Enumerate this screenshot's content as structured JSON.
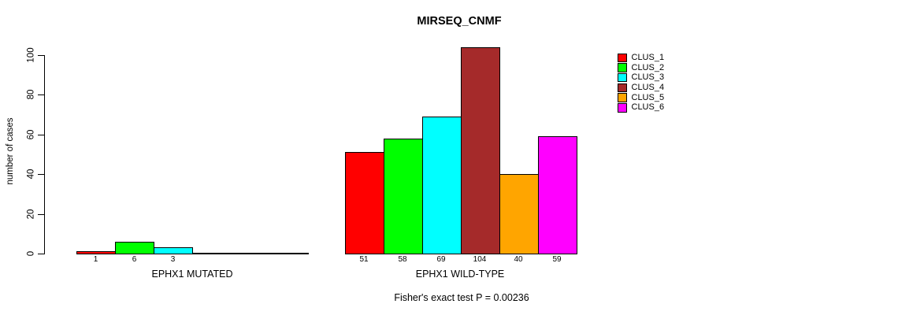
{
  "chart_data": {
    "type": "bar",
    "title": "MIRSEQ_CNMF",
    "ylabel": "number of cases",
    "subtitle": "Fisher's exact test P = 0.00236",
    "ylim": [
      0,
      100
    ],
    "yticks": [
      0,
      20,
      40,
      60,
      80,
      100
    ],
    "grid": false,
    "legend_position": "right",
    "series_names": [
      "CLUS_1",
      "CLUS_2",
      "CLUS_3",
      "CLUS_4",
      "CLUS_5",
      "CLUS_6"
    ],
    "series_colors": [
      "#FF0000",
      "#00FF00",
      "#00FFFF",
      "#A52A2A",
      "#FFA500",
      "#FF00FF"
    ],
    "groups": [
      {
        "label": "EPHX1 MUTATED",
        "values": [
          1,
          6,
          3,
          0,
          0,
          0
        ],
        "bar_labels": [
          "1",
          "6",
          "3",
          "",
          "",
          ""
        ]
      },
      {
        "label": "EPHX1 WILD-TYPE",
        "values": [
          51,
          58,
          69,
          104,
          40,
          59
        ],
        "bar_labels": [
          "51",
          "58",
          "69",
          "104",
          "40",
          "59"
        ]
      }
    ]
  }
}
